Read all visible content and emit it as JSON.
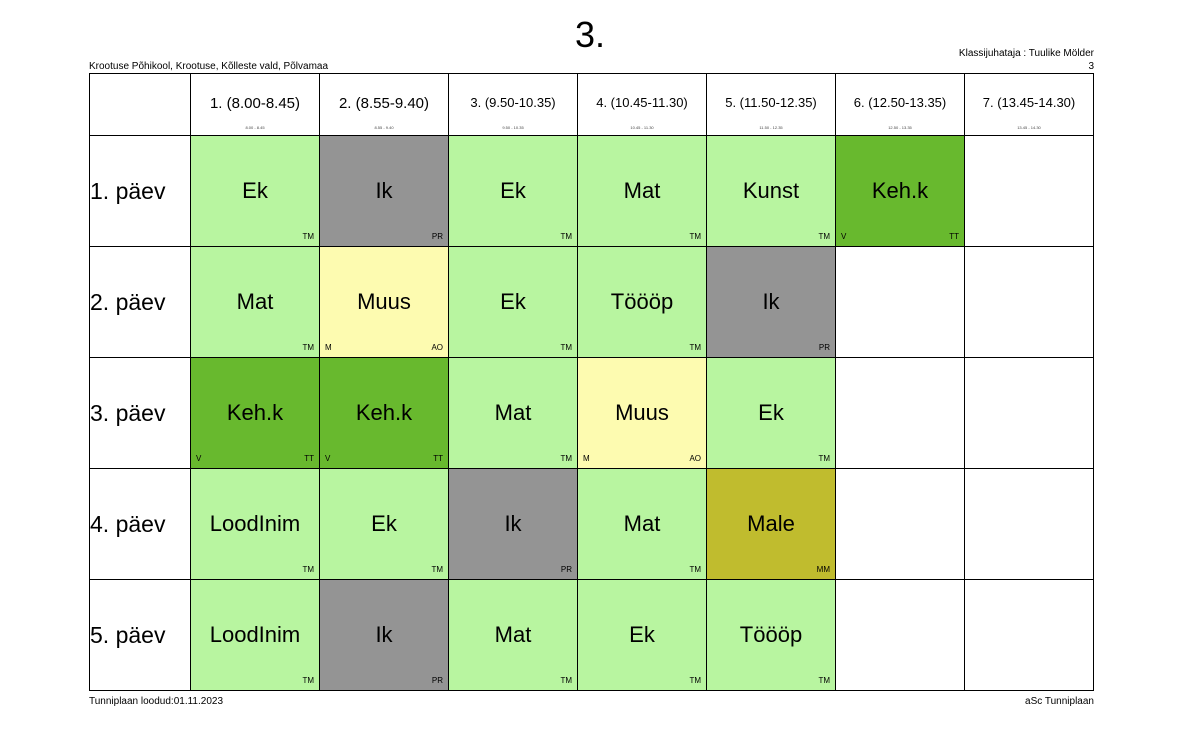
{
  "header": {
    "title": "3.",
    "school": "Krootuse Põhikool, Krootuse, Kõlleste vald, Põlvamaa",
    "teacher": "Klassijuhataja : Tuulike Mölder",
    "class_no": "3"
  },
  "periods": [
    {
      "label": "1. (8.00-8.45)",
      "small": "8.00 - 8.45"
    },
    {
      "label": "2. (8.55-9.40)",
      "small": "8.55 - 9.40"
    },
    {
      "label": "3. (9.50-10.35)",
      "small": "9.50 - 10.35"
    },
    {
      "label": "4. (10.45-11.30)",
      "small": "10.45 - 11.30"
    },
    {
      "label": "5. (11.50-12.35)",
      "small": "11.50 - 12.35"
    },
    {
      "label": "6. (12.50-13.35)",
      "small": "12.50 - 13.35"
    },
    {
      "label": "7. (13.45-14.30)",
      "small": "13.45 - 14.30"
    }
  ],
  "days": [
    {
      "label": "1. päev",
      "lessons": [
        {
          "subject": "Ek",
          "teacher": "TM",
          "group": "",
          "color": "#b8f5a0"
        },
        {
          "subject": "Ik",
          "teacher": "PR",
          "group": "",
          "color": "#949494"
        },
        {
          "subject": "Ek",
          "teacher": "TM",
          "group": "",
          "color": "#b8f5a0"
        },
        {
          "subject": "Mat",
          "teacher": "TM",
          "group": "",
          "color": "#b8f5a0"
        },
        {
          "subject": "Kunst",
          "teacher": "TM",
          "group": "",
          "color": "#b8f5a0"
        },
        {
          "subject": "Keh.k",
          "teacher": "TT",
          "group": "V",
          "color": "#68b92e"
        },
        null
      ]
    },
    {
      "label": "2. päev",
      "lessons": [
        {
          "subject": "Mat",
          "teacher": "TM",
          "group": "",
          "color": "#b8f5a0"
        },
        {
          "subject": "Muus",
          "teacher": "AO",
          "group": "M",
          "color": "#fdfbb0"
        },
        {
          "subject": "Ek",
          "teacher": "TM",
          "group": "",
          "color": "#b8f5a0"
        },
        {
          "subject": "Töööp",
          "teacher": "TM",
          "group": "",
          "color": "#b8f5a0"
        },
        {
          "subject": "Ik",
          "teacher": "PR",
          "group": "",
          "color": "#949494"
        },
        null,
        null
      ]
    },
    {
      "label": "3. päev",
      "lessons": [
        {
          "subject": "Keh.k",
          "teacher": "TT",
          "group": "V",
          "color": "#68b92e"
        },
        {
          "subject": "Keh.k",
          "teacher": "TT",
          "group": "V",
          "color": "#68b92e"
        },
        {
          "subject": "Mat",
          "teacher": "TM",
          "group": "",
          "color": "#b8f5a0"
        },
        {
          "subject": "Muus",
          "teacher": "AO",
          "group": "M",
          "color": "#fdfbb0"
        },
        {
          "subject": "Ek",
          "teacher": "TM",
          "group": "",
          "color": "#b8f5a0"
        },
        null,
        null
      ]
    },
    {
      "label": "4. päev",
      "lessons": [
        {
          "subject": "LoodInim",
          "teacher": "TM",
          "group": "",
          "color": "#b8f5a0"
        },
        {
          "subject": "Ek",
          "teacher": "TM",
          "group": "",
          "color": "#b8f5a0"
        },
        {
          "subject": "Ik",
          "teacher": "PR",
          "group": "",
          "color": "#949494"
        },
        {
          "subject": "Mat",
          "teacher": "TM",
          "group": "",
          "color": "#b8f5a0"
        },
        {
          "subject": "Male",
          "teacher": "MM",
          "group": "",
          "color": "#c0bc2e"
        },
        null,
        null
      ]
    },
    {
      "label": "5. päev",
      "lessons": [
        {
          "subject": "LoodInim",
          "teacher": "TM",
          "group": "",
          "color": "#b8f5a0"
        },
        {
          "subject": "Ik",
          "teacher": "PR",
          "group": "",
          "color": "#949494"
        },
        {
          "subject": "Mat",
          "teacher": "TM",
          "group": "",
          "color": "#b8f5a0"
        },
        {
          "subject": "Ek",
          "teacher": "TM",
          "group": "",
          "color": "#b8f5a0"
        },
        {
          "subject": "Töööp",
          "teacher": "TM",
          "group": "",
          "color": "#b8f5a0"
        },
        null,
        null
      ]
    }
  ],
  "footer": {
    "created": "Tunniplaan loodud:01.11.2023",
    "brand": "aSc Tunniplaan"
  }
}
